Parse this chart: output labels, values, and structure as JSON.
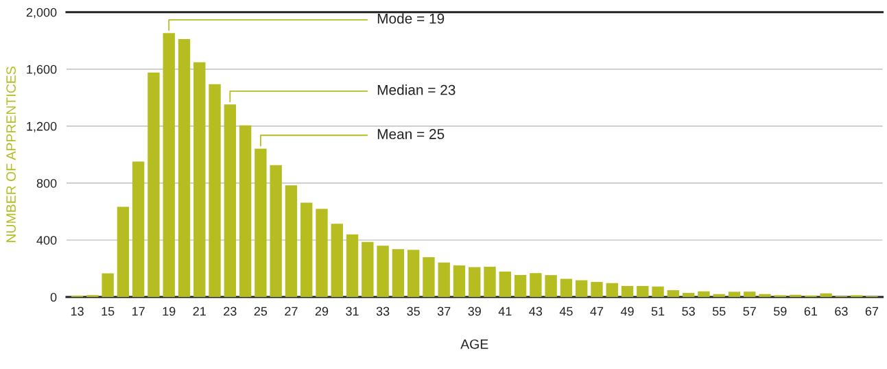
{
  "chart_data": {
    "type": "bar",
    "xlabel": "AGE",
    "ylabel": "NUMBER OF APPRENTICES",
    "categories": [
      "13",
      null,
      "15",
      null,
      "17",
      null,
      "19",
      null,
      "21",
      null,
      "23",
      null,
      "25",
      null,
      "27",
      null,
      "29",
      null,
      "31",
      null,
      "33",
      null,
      "35",
      null,
      "37",
      null,
      "39",
      null,
      "41",
      null,
      "43",
      null,
      "45",
      null,
      "47",
      null,
      "49",
      null,
      "51",
      null,
      "53",
      null,
      "55",
      null,
      "57",
      null,
      "59",
      null,
      "61",
      null,
      "63",
      null,
      "67"
    ],
    "values": [
      10,
      14,
      166,
      634,
      952,
      1576,
      1853,
      1811,
      1648,
      1494,
      1352,
      1205,
      1042,
      926,
      784,
      662,
      619,
      514,
      440,
      387,
      360,
      336,
      331,
      280,
      242,
      222,
      210,
      213,
      179,
      155,
      168,
      154,
      128,
      118,
      106,
      98,
      78,
      78,
      74,
      48,
      29,
      40,
      21,
      37,
      38,
      21,
      13,
      16,
      11,
      26,
      6,
      13,
      6
    ],
    "color": "#b5bd20",
    "ylim": [
      0,
      2000
    ],
    "yticks": [
      0,
      400,
      800,
      {
        "value": 1200,
        "label": "1,200"
      },
      {
        "value": 1600,
        "label": "1,600"
      },
      {
        "value": 2000,
        "label": "2,000"
      }
    ],
    "grid": "y",
    "annotations": [
      {
        "text": "Mode = 19",
        "x": "19",
        "y": 1853
      },
      {
        "text": "Median = 23",
        "x": "23",
        "y": 1352
      },
      {
        "text": "Mean = 25",
        "x": "25",
        "y": 1042
      }
    ]
  }
}
